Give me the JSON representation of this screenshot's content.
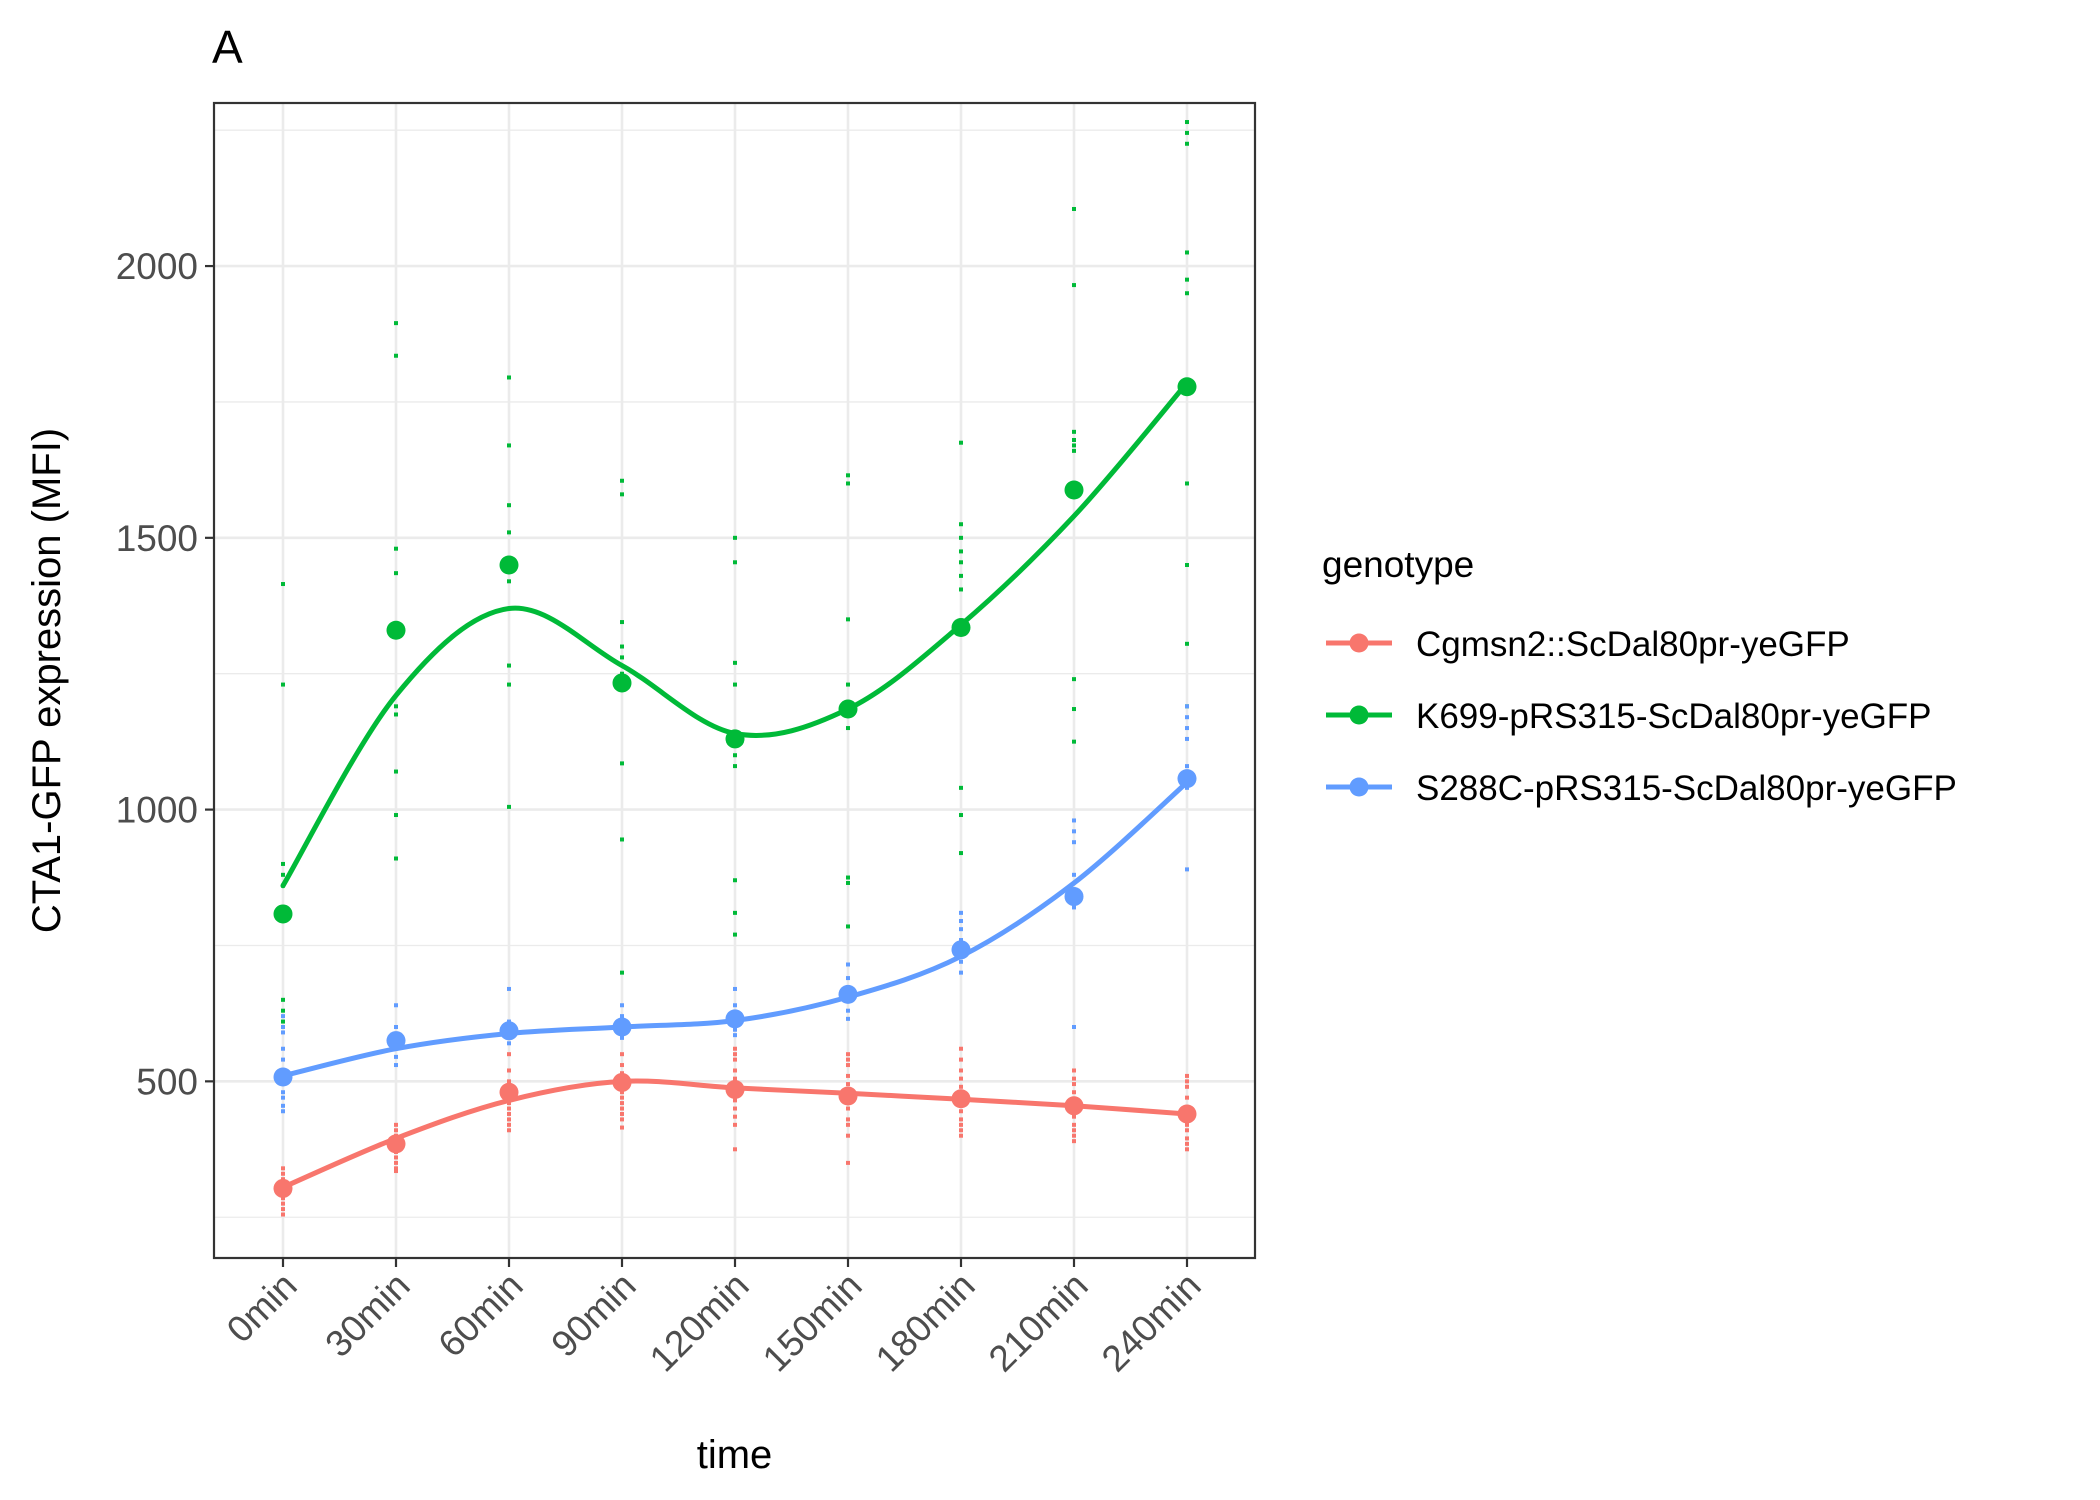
{
  "panel_label": "A",
  "chart_data": {
    "type": "line",
    "title": "A",
    "xlabel": "time",
    "ylabel": "CTA1-GFP expression (MFI)",
    "categories": [
      "0min",
      "30min",
      "60min",
      "90min",
      "120min",
      "150min",
      "180min",
      "210min",
      "240min"
    ],
    "ylim": [
      175,
      2300
    ],
    "yticks": [
      500,
      1000,
      1500,
      2000
    ],
    "grid": true,
    "legend": {
      "title": "genotype",
      "position": "right"
    },
    "series": [
      {
        "name": "Cgmsn2::ScDal80pr-yeGFP",
        "color": "#F8766D",
        "means": [
          303,
          385,
          480,
          498,
          485,
          473,
          468,
          455,
          440
        ],
        "smooth": [
          305,
          395,
          465,
          500,
          488,
          478,
          467,
          455,
          440
        ],
        "replicates": [
          [
            340,
            330,
            320,
            310,
            300,
            295,
            285,
            275,
            265,
            255
          ],
          [
            420,
            410,
            400,
            395,
            380,
            370,
            360,
            350,
            340,
            335
          ],
          [
            550,
            520,
            500,
            490,
            480,
            470,
            460,
            450,
            440,
            430,
            420,
            410
          ],
          [
            550,
            530,
            515,
            505,
            495,
            480,
            470,
            460,
            450,
            440,
            430,
            415
          ],
          [
            560,
            550,
            540,
            520,
            505,
            495,
            480,
            465,
            450,
            435,
            420,
            375
          ],
          [
            550,
            540,
            530,
            510,
            495,
            480,
            470,
            450,
            430,
            420,
            400,
            350
          ],
          [
            560,
            540,
            520,
            505,
            490,
            475,
            460,
            445,
            430,
            420,
            410,
            400
          ],
          [
            520,
            505,
            495,
            480,
            465,
            450,
            435,
            420,
            410,
            400,
            390
          ],
          [
            510,
            500,
            490,
            470,
            450,
            430,
            420,
            410,
            395,
            385,
            375
          ]
        ]
      },
      {
        "name": "K699-pRS315-ScDal80pr-yeGFP",
        "color": "#00BA38",
        "means": [
          808,
          1330,
          1450,
          1233,
          1130,
          1185,
          1335,
          1588,
          1778
        ],
        "smooth": [
          860,
          1210,
          1370,
          1265,
          1140,
          1185,
          1340,
          1540,
          1785
        ],
        "replicates": [
          [
            1415,
            1230,
            900,
            880,
            860,
            650,
            630,
            610
          ],
          [
            1895,
            1835,
            1480,
            1435,
            1190,
            1175,
            1070,
            990,
            910
          ],
          [
            1795,
            1670,
            1560,
            1510,
            1420,
            1265,
            1230,
            1005
          ],
          [
            1605,
            1580,
            1345,
            1300,
            1280,
            1250,
            1085,
            945,
            700
          ],
          [
            1500,
            1455,
            1270,
            1230,
            1100,
            1080,
            870,
            810,
            770
          ],
          [
            1615,
            1600,
            1350,
            1230,
            1150,
            875,
            865,
            785
          ],
          [
            1675,
            1525,
            1500,
            1475,
            1455,
            1430,
            1405,
            1040,
            990,
            920
          ],
          [
            2105,
            1965,
            1695,
            1680,
            1670,
            1660,
            1240,
            1185,
            1125
          ],
          [
            2265,
            2245,
            2225,
            2025,
            1975,
            1950,
            1600,
            1450,
            1305,
            1190
          ]
        ]
      },
      {
        "name": "S288C-pRS315-ScDal80pr-yeGFP",
        "color": "#619CFF",
        "means": [
          508,
          575,
          593,
          600,
          615,
          660,
          742,
          840,
          1057
        ],
        "smooth": [
          510,
          560,
          588,
          600,
          612,
          655,
          730,
          865,
          1050
        ],
        "replicates": [
          [
            620,
            600,
            590,
            560,
            540,
            520,
            500,
            480,
            470,
            455,
            445
          ],
          [
            640,
            600,
            580,
            560,
            545,
            530
          ],
          [
            670,
            610,
            600,
            590,
            580,
            570
          ],
          [
            640,
            620,
            610,
            600,
            590,
            580
          ],
          [
            670,
            640,
            620,
            610,
            595,
            585
          ],
          [
            715,
            690,
            670,
            650,
            630,
            615
          ],
          [
            810,
            795,
            780,
            760,
            740,
            720,
            700
          ],
          [
            980,
            960,
            940,
            880,
            850,
            820,
            600
          ],
          [
            1190,
            1170,
            1150,
            1130,
            1080,
            1040,
            890
          ]
        ]
      }
    ]
  }
}
